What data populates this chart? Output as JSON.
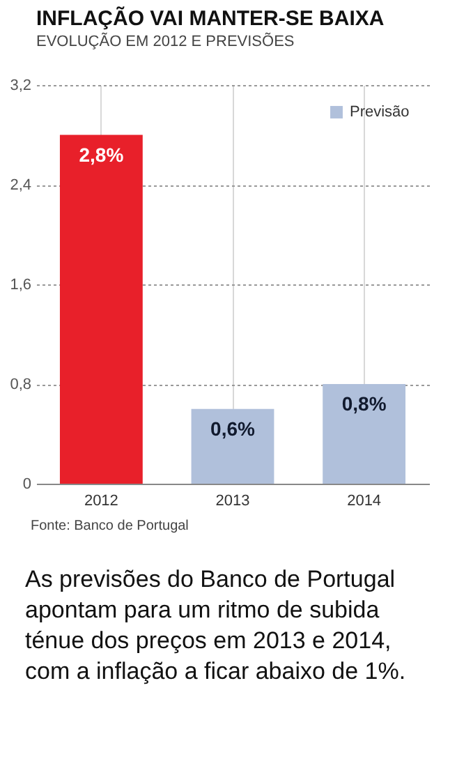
{
  "chart_data": {
    "type": "bar",
    "title": "INFLAÇÃO VAI MANTER-SE BAIXA",
    "subtitle": "EVOLUÇÃO EM 2012 E PREVISÕES",
    "categories": [
      "2012",
      "2013",
      "2014"
    ],
    "series": [
      {
        "color": "#e8202a",
        "values": [
          2.8,
          null,
          null
        ],
        "value_labels": [
          "2,8%",
          null,
          null
        ]
      },
      {
        "name": "Previsão",
        "color": "#b0c0db",
        "values": [
          null,
          0.6,
          0.8
        ],
        "value_labels": [
          null,
          "0,6%",
          "0,8%"
        ]
      }
    ],
    "ylim": [
      0,
      3.2
    ],
    "yticks": [
      0,
      {
        "value": 0.8,
        "label": "0,8"
      },
      {
        "value": 1.6,
        "label": "1,6"
      },
      {
        "value": 2.4,
        "label": "2,4"
      },
      {
        "value": 3.2,
        "label": "3,2"
      }
    ],
    "grid": true,
    "legend": "top right",
    "annotations": [
      "Fonte: Banco de Portugal",
      "As previsões do Banco de Portugal apontam para um ritmo de subida ténue dos preços em 2013 e 2014, com a inflação a ficar abaixo de 1%."
    ]
  }
}
